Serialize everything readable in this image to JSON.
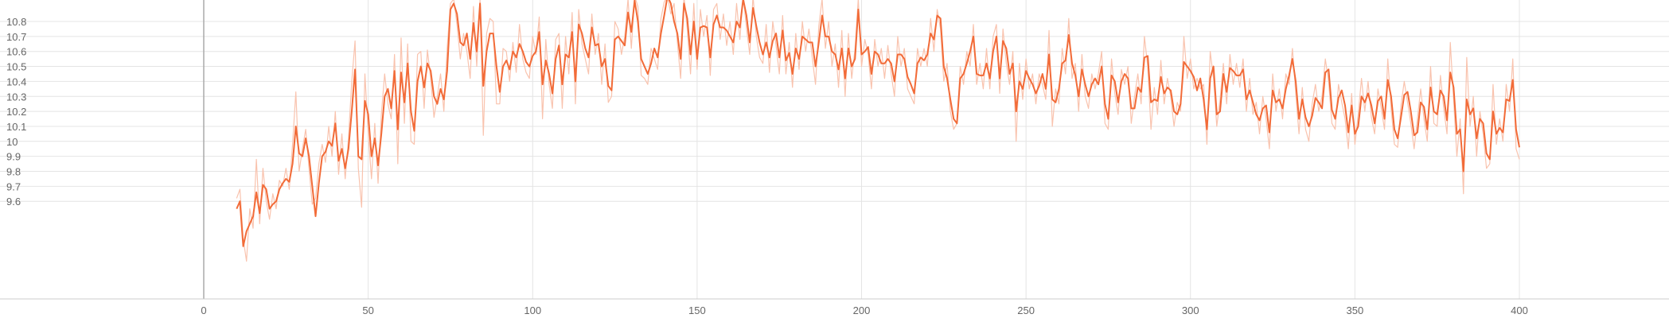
{
  "chart_data": {
    "type": "line",
    "title": "",
    "xlabel": "",
    "ylabel": "",
    "xlim": [
      -62,
      450
    ],
    "ylim": [
      9.5,
      10.88
    ],
    "x_ticks": [
      "0",
      "50",
      "100",
      "150",
      "200",
      "250",
      "300",
      "350",
      "400"
    ],
    "y_ticks": [
      "9.6",
      "9.7",
      "9.8",
      "9.9",
      "10",
      "10.1",
      "10.2",
      "10.3",
      "10.4",
      "10.5",
      "10.6",
      "10.7",
      "10.8"
    ],
    "grid": true,
    "legend": "none",
    "colors": {
      "smoothed": "#f26b38",
      "raw": "#f9c3ae",
      "grid": "#e4e4e4",
      "zero_axis": "#aaaaaa",
      "tick_text": "#666666"
    },
    "series": [
      {
        "role": "smoothed",
        "x_start": 10,
        "x_step": 1,
        "values": [
          9.55,
          9.6,
          9.3,
          9.4,
          9.45,
          9.5,
          9.66,
          9.52,
          9.71,
          9.68,
          9.55,
          9.58,
          9.6,
          9.68,
          9.72,
          9.75,
          9.73,
          9.85,
          10.1,
          9.92,
          9.9,
          10.02,
          9.9,
          9.7,
          9.5,
          9.72,
          9.9,
          9.93,
          10.0,
          9.97,
          10.12,
          9.87,
          9.95,
          9.82,
          9.95,
          10.2,
          10.48,
          9.9,
          9.88,
          10.27,
          10.18,
          9.9,
          10.02,
          9.84,
          10.05,
          10.3,
          10.35,
          10.22,
          10.47,
          10.08,
          10.46,
          10.26,
          10.52,
          10.2,
          10.07,
          10.4,
          10.5,
          10.36,
          10.52,
          10.47,
          10.3,
          10.25,
          10.35,
          10.28,
          10.47,
          10.88,
          10.92,
          10.85,
          10.66,
          10.64,
          10.72,
          10.55,
          10.79,
          10.6,
          10.92,
          10.37,
          10.6,
          10.72,
          10.72,
          10.5,
          10.33,
          10.5,
          10.54,
          10.48,
          10.6,
          10.56,
          10.65,
          10.6,
          10.53,
          10.5,
          10.57,
          10.6,
          10.73,
          10.38,
          10.54,
          10.45,
          10.32,
          10.55,
          10.64,
          10.38,
          10.58,
          10.56,
          10.73,
          10.4,
          10.78,
          10.72,
          10.62,
          10.56,
          10.76,
          10.64,
          10.65,
          10.5,
          10.55,
          10.37,
          10.34,
          10.68,
          10.7,
          10.67,
          10.64,
          10.86,
          10.73,
          10.94,
          10.8,
          10.55,
          10.5,
          10.45,
          10.52,
          10.62,
          10.56,
          10.72,
          10.84,
          10.98,
          10.92,
          10.8,
          10.72,
          10.55,
          10.92,
          10.82,
          10.58,
          10.8,
          10.55,
          10.76,
          10.77,
          10.76,
          10.56,
          10.78,
          10.84,
          10.76,
          10.76,
          10.74,
          10.7,
          10.66,
          10.8,
          10.76,
          10.95,
          10.84,
          10.66,
          10.89,
          10.77,
          10.66,
          10.58,
          10.66,
          10.56,
          10.67,
          10.72,
          10.56,
          10.74,
          10.54,
          10.59,
          10.45,
          10.62,
          10.55,
          10.7,
          10.68,
          10.66,
          10.66,
          10.5,
          10.66,
          10.84,
          10.7,
          10.7,
          10.6,
          10.58,
          10.48,
          10.62,
          10.42,
          10.62,
          10.5,
          10.55,
          10.88,
          10.58,
          10.6,
          10.63,
          10.45,
          10.6,
          10.58,
          10.52,
          10.52,
          10.55,
          10.52,
          10.4,
          10.58,
          10.58,
          10.55,
          10.43,
          10.38,
          10.32,
          10.52,
          10.56,
          10.54,
          10.58,
          10.72,
          10.68,
          10.84,
          10.82,
          10.5,
          10.42,
          10.28,
          10.15,
          10.12,
          10.42,
          10.45,
          10.52,
          10.6,
          10.7,
          10.45,
          10.44,
          10.44,
          10.52,
          10.42,
          10.6,
          10.7,
          10.42,
          10.67,
          10.62,
          10.45,
          10.52,
          10.2,
          10.4,
          10.35,
          10.47,
          10.42,
          10.38,
          10.32,
          10.37,
          10.45,
          10.35,
          10.58,
          10.28,
          10.26,
          10.35,
          10.52,
          10.54,
          10.71,
          10.52,
          10.44,
          10.3,
          10.48,
          10.38,
          10.3,
          10.38,
          10.42,
          10.38,
          10.5,
          10.25,
          10.15,
          10.44,
          10.4,
          10.26,
          10.4,
          10.45,
          10.42,
          10.22,
          10.22,
          10.36,
          10.33,
          10.56,
          10.57,
          10.26,
          10.28,
          10.27,
          10.43,
          10.32,
          10.36,
          10.34,
          10.2,
          10.18,
          10.25,
          10.53,
          10.5,
          10.47,
          10.43,
          10.34,
          10.42,
          10.28,
          10.08,
          10.42,
          10.5,
          10.18,
          10.2,
          10.45,
          10.33,
          10.49,
          10.47,
          10.44,
          10.44,
          10.48,
          10.28,
          10.34,
          10.26,
          10.18,
          10.14,
          10.22,
          10.24,
          10.06,
          10.34,
          10.26,
          10.28,
          10.22,
          10.35,
          10.44,
          10.55,
          10.4,
          10.15,
          10.28,
          10.16,
          10.1,
          10.17,
          10.29,
          10.26,
          10.22,
          10.46,
          10.48,
          10.21,
          10.15,
          10.29,
          10.34,
          10.24,
          10.06,
          10.24,
          10.05,
          10.1,
          10.3,
          10.26,
          10.32,
          10.24,
          10.12,
          10.27,
          10.3,
          10.15,
          10.41,
          10.3,
          10.08,
          10.02,
          10.16,
          10.31,
          10.33,
          10.2,
          10.04,
          10.06,
          10.26,
          10.23,
          10.08,
          10.36,
          10.2,
          10.18,
          10.34,
          10.3,
          10.14,
          10.46,
          10.36,
          10.05,
          10.08,
          9.8,
          10.28,
          10.18,
          10.22,
          10.02,
          10.15,
          10.12,
          9.92,
          9.88,
          10.2,
          10.05,
          10.09,
          10.06,
          10.28,
          10.27,
          10.41,
          10.08,
          9.96
        ]
      },
      {
        "role": "raw",
        "x_start": 10,
        "x_step": 1,
        "values": [
          9.62,
          9.68,
          9.35,
          9.2,
          9.55,
          9.42,
          9.88,
          9.45,
          9.82,
          9.6,
          9.48,
          9.65,
          9.55,
          9.74,
          9.7,
          9.82,
          9.68,
          9.98,
          10.33,
          9.8,
          9.95,
          10.08,
          9.82,
          9.58,
          9.62,
          9.85,
          9.98,
          9.86,
          10.1,
          9.9,
          10.2,
          9.78,
          10.05,
          9.75,
          10.02,
          10.4,
          10.67,
          9.82,
          9.56,
          10.45,
          10.05,
          9.75,
          10.12,
          9.72,
          10.18,
          10.45,
          10.25,
          10.15,
          10.58,
          9.85,
          10.69,
          10.12,
          10.65,
          10.0,
          9.98,
          10.58,
          10.6,
          10.22,
          10.61,
          10.42,
          10.16,
          10.3,
          10.45,
          10.2,
          10.62,
          10.92,
          10.95,
          10.78,
          10.55,
          10.72,
          10.6,
          10.42,
          10.9,
          10.5,
          10.95,
          10.04,
          10.72,
          10.82,
          10.8,
          10.25,
          10.25,
          10.62,
          10.6,
          10.4,
          10.66,
          10.46,
          10.78,
          10.55,
          10.46,
          10.42,
          10.7,
          10.58,
          10.83,
          10.15,
          10.68,
          10.38,
          10.22,
          10.68,
          10.72,
          10.22,
          10.7,
          10.45,
          10.86,
          10.25,
          10.88,
          10.65,
          10.55,
          10.45,
          10.85,
          10.58,
          10.72,
          10.38,
          10.65,
          10.26,
          10.3,
          10.8,
          10.75,
          10.58,
          10.7,
          10.95,
          10.62,
          10.98,
          10.9,
          10.44,
          10.42,
          10.38,
          10.62,
          10.55,
          10.48,
          10.82,
          10.93,
          11.0,
          10.85,
          10.92,
          10.66,
          10.42,
          11.0,
          10.75,
          10.45,
          10.92,
          10.48,
          10.88,
          10.7,
          10.84,
          10.44,
          10.88,
          10.92,
          10.68,
          10.85,
          10.64,
          10.8,
          10.58,
          10.92,
          10.68,
          11.0,
          10.76,
          10.58,
          10.98,
          10.7,
          10.56,
          10.52,
          10.78,
          10.46,
          10.8,
          10.64,
          10.45,
          10.84,
          10.45,
          10.66,
          10.36,
          10.72,
          10.48,
          10.8,
          10.6,
          10.75,
          10.56,
          10.38,
          10.77,
          10.95,
          10.62,
          10.8,
          10.5,
          10.65,
          10.36,
          10.74,
          10.3,
          10.72,
          10.42,
          10.62,
          10.95,
          10.5,
          10.68,
          10.58,
          10.35,
          10.68,
          10.5,
          10.62,
          10.42,
          10.64,
          10.45,
          10.3,
          10.7,
          10.5,
          10.62,
          10.35,
          10.3,
          10.25,
          10.62,
          10.5,
          10.62,
          10.5,
          10.82,
          10.6,
          10.88,
          10.75,
          10.4,
          10.52,
          10.2,
          10.08,
          10.12,
          10.5,
          10.38,
          10.6,
          10.5,
          10.78,
          10.38,
          10.52,
          10.35,
          10.62,
          10.35,
          10.7,
          10.78,
          10.32,
          10.75,
          10.52,
          10.38,
          10.6,
          10.0,
          10.52,
          10.28,
          10.55,
          10.35,
          10.45,
          10.25,
          10.45,
          10.38,
          10.28,
          10.74,
          10.1,
          10.35,
          10.25,
          10.62,
          10.45,
          10.82,
          10.42,
          10.52,
          10.2,
          10.58,
          10.3,
          10.22,
          10.45,
          10.35,
          10.45,
          10.6,
          10.12,
          10.08,
          10.55,
          10.32,
          10.18,
          10.48,
          10.38,
          10.5,
          10.12,
          10.3,
          10.45,
          10.25,
          10.7,
          10.5,
          10.08,
          10.36,
          10.18,
          10.54,
          10.25,
          10.42,
          10.3,
          10.1,
          10.26,
          10.2,
          10.7,
          10.42,
          10.55,
          10.35,
          10.42,
          10.35,
          10.38,
          9.98,
          10.6,
          10.42,
          10.1,
          10.28,
          10.52,
          10.25,
          10.58,
          10.38,
          10.52,
          10.36,
          10.55,
          10.2,
          10.42,
          10.18,
          10.26,
          10.05,
          10.3,
          10.15,
          9.95,
          10.45,
          10.2,
          10.35,
          10.15,
          10.45,
          10.38,
          10.62,
          10.32,
          10.05,
          10.36,
          10.08,
          10.0,
          10.25,
          10.38,
          10.2,
          10.3,
          10.55,
          10.4,
          10.12,
          10.08,
          10.38,
          10.26,
          10.15,
          9.95,
          10.32,
          9.98,
          10.18,
          10.42,
          10.2,
          10.4,
          10.16,
          10.05,
          10.35,
          10.22,
          10.08,
          10.55,
          10.22,
          9.98,
          9.96,
          10.24,
          10.4,
          10.26,
          10.12,
          9.95,
          10.15,
          10.35,
          10.15,
          10.0,
          10.5,
          10.12,
          10.1,
          10.44,
          10.22,
          10.05,
          10.66,
          10.28,
          9.9,
          10.15,
          9.65,
          10.56,
          10.1,
          10.3,
          9.9,
          10.2,
          10.05,
          9.82,
          9.85,
          10.38,
          9.98,
          10.15,
          10.0,
          10.38,
          10.2,
          10.55,
          9.95,
          9.88
        ]
      }
    ]
  }
}
